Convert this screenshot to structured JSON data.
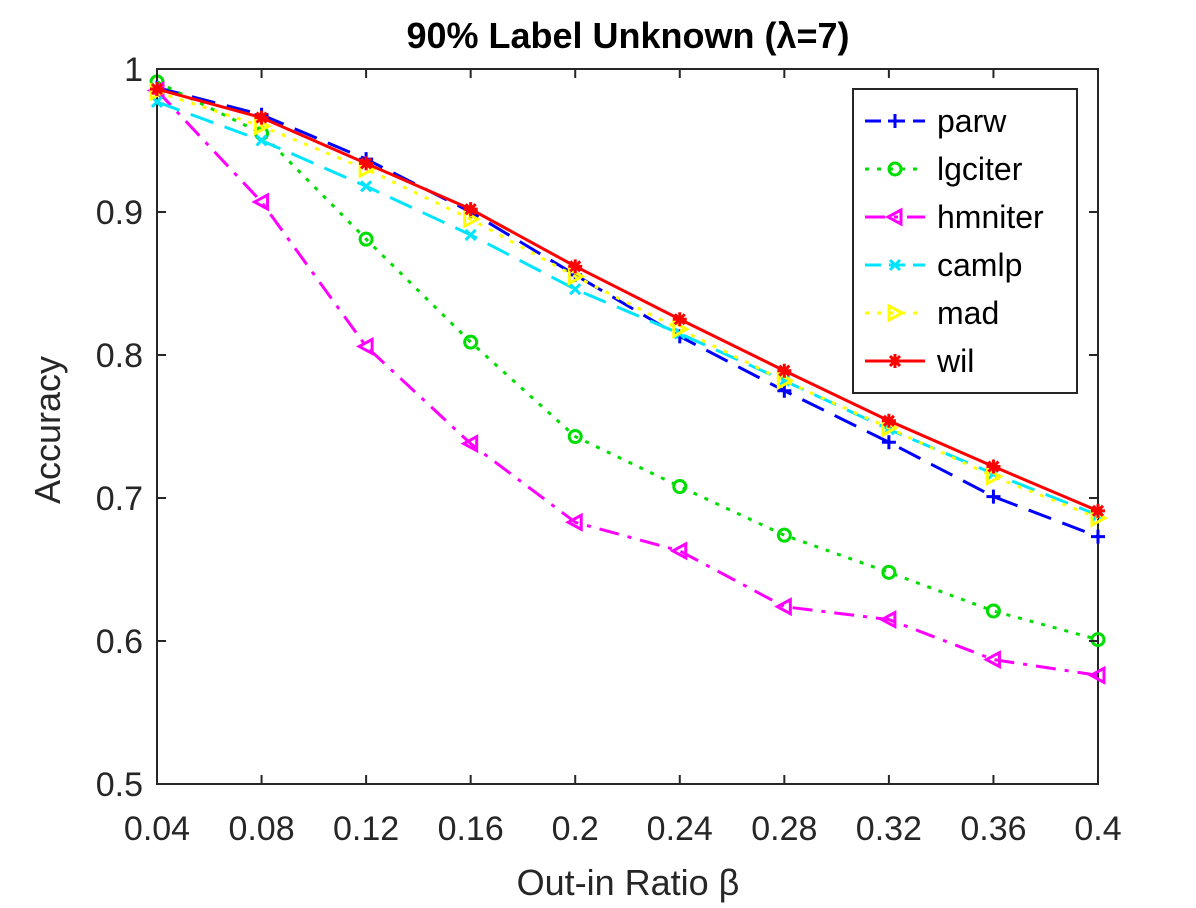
{
  "chart_data": {
    "type": "line",
    "title": "90% Label Unknown (λ=7)",
    "xlabel": "Out-in Ratio β",
    "ylabel": "Accuracy",
    "x": [
      0.04,
      0.08,
      0.12,
      0.16,
      0.2,
      0.24,
      0.28,
      0.32,
      0.36,
      0.4
    ],
    "x_tick_labels": [
      "0.04",
      "0.08",
      "0.12",
      "0.16",
      "0.2",
      "0.24",
      "0.28",
      "0.32",
      "0.36",
      "0.4"
    ],
    "y_ticks": [
      0.5,
      0.6,
      0.7,
      0.8,
      0.9,
      1.0
    ],
    "y_tick_labels": [
      "0.5",
      "0.6",
      "0.7",
      "0.8",
      "0.9",
      "1"
    ],
    "xlim": [
      0.04,
      0.4
    ],
    "ylim": [
      0.5,
      1.0
    ],
    "grid": false,
    "legend_position": "top-right",
    "series": [
      {
        "name": "parw",
        "color": "#0000ff",
        "dash": "dashed",
        "marker": "plus",
        "values": [
          0.987,
          0.968,
          0.937,
          0.9,
          0.856,
          0.813,
          0.775,
          0.739,
          0.701,
          0.673
        ]
      },
      {
        "name": "lgciter",
        "color": "#00dd00",
        "dash": "dotted",
        "marker": "circle",
        "values": [
          0.991,
          0.955,
          0.881,
          0.809,
          0.743,
          0.708,
          0.674,
          0.648,
          0.621,
          0.601
        ]
      },
      {
        "name": "hmniter",
        "color": "#ff00ff",
        "dash": "dashdot",
        "marker": "triangle-left",
        "values": [
          0.985,
          0.907,
          0.806,
          0.738,
          0.683,
          0.663,
          0.624,
          0.615,
          0.587,
          0.576
        ]
      },
      {
        "name": "camlp",
        "color": "#00e5ff",
        "dash": "dashed",
        "marker": "x",
        "values": [
          0.977,
          0.95,
          0.918,
          0.884,
          0.846,
          0.815,
          0.782,
          0.748,
          0.717,
          0.688
        ]
      },
      {
        "name": "mad",
        "color": "#ffff00",
        "dash": "dotted",
        "marker": "triangle-right",
        "values": [
          0.984,
          0.96,
          0.93,
          0.895,
          0.855,
          0.818,
          0.782,
          0.749,
          0.715,
          0.686
        ]
      },
      {
        "name": "wil",
        "color": "#ff0000",
        "dash": "solid",
        "marker": "asterisk",
        "values": [
          0.986,
          0.966,
          0.934,
          0.902,
          0.862,
          0.825,
          0.789,
          0.754,
          0.722,
          0.691
        ]
      }
    ]
  }
}
